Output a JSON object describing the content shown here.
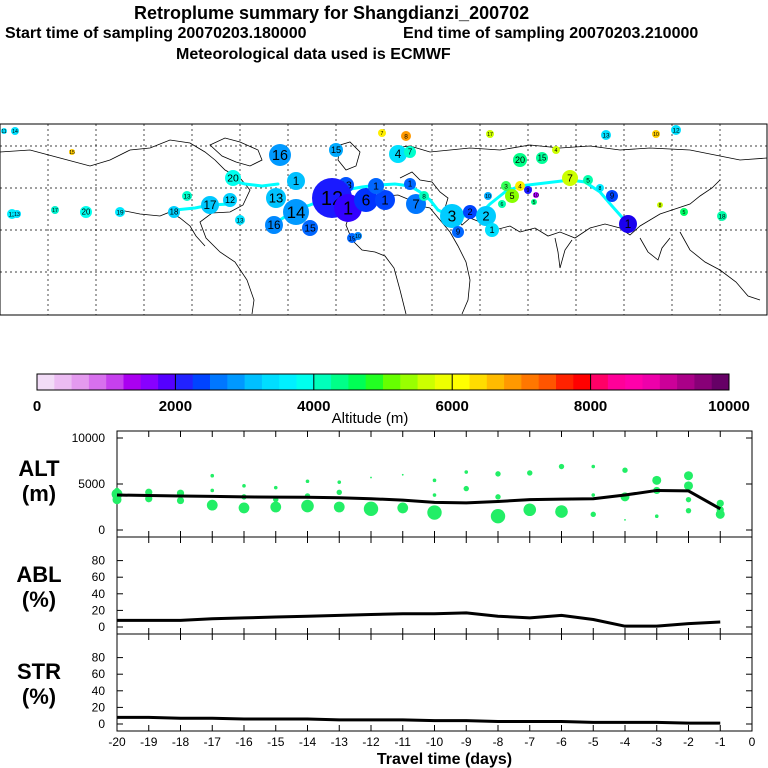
{
  "header": {
    "title": "Retroplume summary for Shangdianzi_200702",
    "start_label": "Start time of sampling 20070203.180000",
    "end_label": "End time of sampling 20070203.210000",
    "met_label": "Meteorological data used is ECMWF"
  },
  "map_labels": [
    "11",
    "14",
    "13",
    "12",
    "16",
    "6",
    "18",
    "15",
    "17",
    "20",
    "19",
    "7",
    "1",
    "2",
    "3",
    "4",
    "5",
    "8",
    "9",
    "10"
  ],
  "colors": {
    "plume_line": "#00ffff",
    "green_dots": "#22ee66",
    "line": "#000000"
  },
  "colorbar": {
    "ticks": [
      "0",
      "2000",
      "4000",
      "6000",
      "8000",
      "10000"
    ],
    "label": "Altitude (m)",
    "colors": [
      "#f2dcf7",
      "#ecbcf3",
      "#e49aef",
      "#d870ee",
      "#c640ee",
      "#aa00f0",
      "#8800ff",
      "#5500ff",
      "#2222ff",
      "#0044ff",
      "#0077ff",
      "#0099ff",
      "#00c0ff",
      "#00ddff",
      "#00f0ff",
      "#00ffee",
      "#00ffbb",
      "#00ff88",
      "#00ff55",
      "#22ff22",
      "#66ff00",
      "#99ff00",
      "#ccff00",
      "#eeff00",
      "#ffff00",
      "#ffdd00",
      "#ffbb00",
      "#ff9900",
      "#ff7700",
      "#ff5500",
      "#ff2200",
      "#ff0000",
      "#ff0066",
      "#ff0099",
      "#ff00aa",
      "#ee00aa",
      "#cc0099",
      "#aa0088",
      "#880077",
      "#660066"
    ]
  },
  "chart_data": [
    {
      "type": "line",
      "panel": "ALT",
      "ylabel": "ALT",
      "yunit": "(m)",
      "ylim": [
        0,
        10000
      ],
      "yticks": [
        "0",
        "5000",
        "10000"
      ],
      "x": [
        -20,
        -19,
        -18,
        -17,
        -16,
        -15,
        -14,
        -13,
        -12,
        -11,
        -10,
        -9,
        -8,
        -7,
        -6,
        -5,
        -4,
        -3,
        -2,
        -1
      ],
      "series": [
        {
          "name": "mean altitude",
          "values": [
            3800,
            3750,
            3700,
            3650,
            3600,
            3580,
            3560,
            3500,
            3400,
            3250,
            3000,
            2950,
            3100,
            3300,
            3350,
            3400,
            3800,
            4300,
            4250,
            2300
          ]
        }
      ],
      "scatter": [
        {
          "x": -20,
          "y": 3900,
          "size": 6
        },
        {
          "x": -20,
          "y": 3300,
          "size": 5
        },
        {
          "x": -20,
          "y": 4300,
          "size": 3
        },
        {
          "x": -19,
          "y": 4100,
          "size": 4
        },
        {
          "x": -19,
          "y": 3400,
          "size": 4
        },
        {
          "x": -18,
          "y": 4000,
          "size": 4
        },
        {
          "x": -18,
          "y": 3200,
          "size": 4
        },
        {
          "x": -17,
          "y": 5900,
          "size": 2
        },
        {
          "x": -17,
          "y": 4300,
          "size": 2
        },
        {
          "x": -17,
          "y": 2700,
          "size": 6
        },
        {
          "x": -16,
          "y": 4800,
          "size": 2
        },
        {
          "x": -16,
          "y": 3600,
          "size": 3
        },
        {
          "x": -16,
          "y": 2400,
          "size": 6
        },
        {
          "x": -15,
          "y": 4600,
          "size": 2
        },
        {
          "x": -15,
          "y": 3300,
          "size": 3
        },
        {
          "x": -15,
          "y": 2500,
          "size": 6
        },
        {
          "x": -14,
          "y": 5300,
          "size": 2
        },
        {
          "x": -14,
          "y": 3700,
          "size": 3
        },
        {
          "x": -14,
          "y": 2600,
          "size": 7
        },
        {
          "x": -13,
          "y": 5200,
          "size": 2
        },
        {
          "x": -13,
          "y": 4100,
          "size": 3
        },
        {
          "x": -13,
          "y": 2500,
          "size": 6
        },
        {
          "x": -12,
          "y": 5700,
          "size": 1
        },
        {
          "x": -12,
          "y": 2300,
          "size": 8
        },
        {
          "x": -11,
          "y": 6000,
          "size": 1
        },
        {
          "x": -11,
          "y": 2400,
          "size": 6
        },
        {
          "x": -10,
          "y": 5400,
          "size": 2
        },
        {
          "x": -10,
          "y": 3800,
          "size": 2
        },
        {
          "x": -10,
          "y": 1900,
          "size": 8
        },
        {
          "x": -9,
          "y": 6300,
          "size": 2
        },
        {
          "x": -9,
          "y": 4500,
          "size": 3
        },
        {
          "x": -8,
          "y": 6100,
          "size": 3
        },
        {
          "x": -8,
          "y": 3600,
          "size": 3
        },
        {
          "x": -8,
          "y": 1500,
          "size": 8
        },
        {
          "x": -7,
          "y": 6200,
          "size": 3
        },
        {
          "x": -7,
          "y": 2200,
          "size": 7
        },
        {
          "x": -6,
          "y": 6900,
          "size": 3
        },
        {
          "x": -6,
          "y": 2000,
          "size": 7
        },
        {
          "x": -5,
          "y": 6900,
          "size": 2
        },
        {
          "x": -5,
          "y": 3800,
          "size": 2
        },
        {
          "x": -5,
          "y": 1700,
          "size": 3
        },
        {
          "x": -4,
          "y": 6500,
          "size": 3
        },
        {
          "x": -4,
          "y": 3600,
          "size": 5
        },
        {
          "x": -4,
          "y": 1100,
          "size": 1
        },
        {
          "x": -3,
          "y": 5400,
          "size": 5
        },
        {
          "x": -3,
          "y": 4300,
          "size": 4
        },
        {
          "x": -3,
          "y": 1500,
          "size": 2
        },
        {
          "x": -2,
          "y": 5900,
          "size": 5
        },
        {
          "x": -2,
          "y": 4800,
          "size": 5
        },
        {
          "x": -2,
          "y": 3300,
          "size": 3
        },
        {
          "x": -2,
          "y": 2100,
          "size": 3
        },
        {
          "x": -1,
          "y": 2900,
          "size": 4
        },
        {
          "x": -1,
          "y": 2200,
          "size": 4
        },
        {
          "x": -1,
          "y": 1700,
          "size": 5
        }
      ]
    },
    {
      "type": "line",
      "panel": "ABL",
      "ylabel": "ABL",
      "yunit": "(%)",
      "ylim": [
        0,
        100
      ],
      "yticks": [
        "0",
        "20",
        "40",
        "60",
        "80"
      ],
      "x": [
        -20,
        -19,
        -18,
        -17,
        -16,
        -15,
        -14,
        -13,
        -12,
        -11,
        -10,
        -9,
        -8,
        -7,
        -6,
        -5,
        -4,
        -3,
        -2,
        -1
      ],
      "series": [
        {
          "name": "ABL fraction",
          "values": [
            8,
            8,
            8,
            10,
            11,
            12,
            13,
            14,
            15,
            16,
            16,
            17,
            13,
            11,
            14,
            9,
            1,
            1,
            4,
            6
          ]
        }
      ]
    },
    {
      "type": "line",
      "panel": "STR",
      "ylabel": "STR",
      "yunit": "(%)",
      "ylim": [
        0,
        100
      ],
      "yticks": [
        "0",
        "20",
        "40",
        "60",
        "80"
      ],
      "xlabel": "Travel time (days)",
      "xticks": [
        "-20",
        "-19",
        "-18",
        "-17",
        "-16",
        "-15",
        "-14",
        "-13",
        "-12",
        "-11",
        "-10",
        "-9",
        "-8",
        "-7",
        "-6",
        "-5",
        "-4",
        "-3",
        "-2",
        "-1",
        "0"
      ],
      "x": [
        -20,
        -19,
        -18,
        -17,
        -16,
        -15,
        -14,
        -13,
        -12,
        -11,
        -10,
        -9,
        -8,
        -7,
        -6,
        -5,
        -4,
        -3,
        -2,
        -1
      ],
      "series": [
        {
          "name": "stratospheric fraction",
          "values": [
            8,
            8,
            7,
            7,
            6,
            6,
            6,
            5,
            5,
            5,
            4,
            4,
            3,
            3,
            3,
            2,
            2,
            2,
            1,
            1
          ]
        }
      ]
    }
  ]
}
